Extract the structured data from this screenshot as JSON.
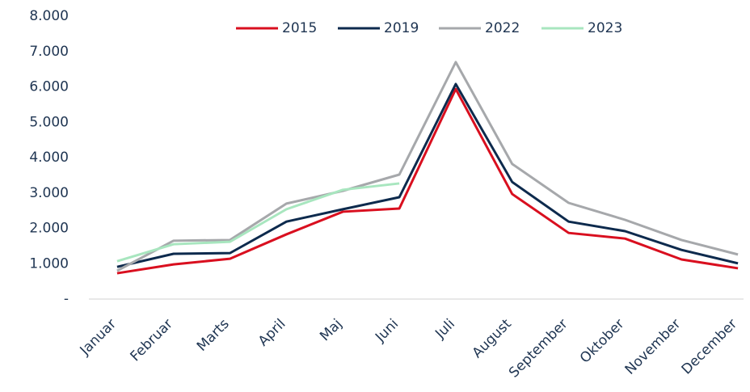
{
  "chart_data": {
    "type": "line",
    "categories": [
      "Januar",
      "Februar",
      "Marts",
      "April",
      "Maj",
      "Juni",
      "Juli",
      "August",
      "September",
      "Oktober",
      "November",
      "December"
    ],
    "series": [
      {
        "name": "2015",
        "color": "#d90f1f",
        "values": [
          730,
          980,
          1140,
          1830,
          2470,
          2560,
          5940,
          2970,
          1870,
          1710,
          1120,
          870
        ]
      },
      {
        "name": "2019",
        "color": "#0d2a4d",
        "values": [
          910,
          1280,
          1300,
          2190,
          2540,
          2880,
          6080,
          3310,
          2190,
          1920,
          1390,
          1010
        ]
      },
      {
        "name": "2022",
        "color": "#a6a8ab",
        "values": [
          800,
          1650,
          1670,
          2700,
          3060,
          3520,
          6700,
          3820,
          2720,
          2240,
          1670,
          1260
        ]
      },
      {
        "name": "2023",
        "color": "#a8e6bf",
        "values": [
          1070,
          1550,
          1620,
          2540,
          3090,
          3270,
          null,
          null,
          null,
          null,
          null,
          null
        ]
      }
    ],
    "ylim": [
      0,
      8000
    ],
    "yticks": [
      {
        "value": 0,
        "label": "-"
      },
      {
        "value": 1000,
        "label": "1.000"
      },
      {
        "value": 2000,
        "label": "2.000"
      },
      {
        "value": 3000,
        "label": "3.000"
      },
      {
        "value": 4000,
        "label": "4.000"
      },
      {
        "value": 5000,
        "label": "5.000"
      },
      {
        "value": 6000,
        "label": "6.000"
      },
      {
        "value": 7000,
        "label": "7.000"
      },
      {
        "value": 8000,
        "label": "8.000"
      }
    ],
    "grid": false,
    "legend": "top"
  }
}
